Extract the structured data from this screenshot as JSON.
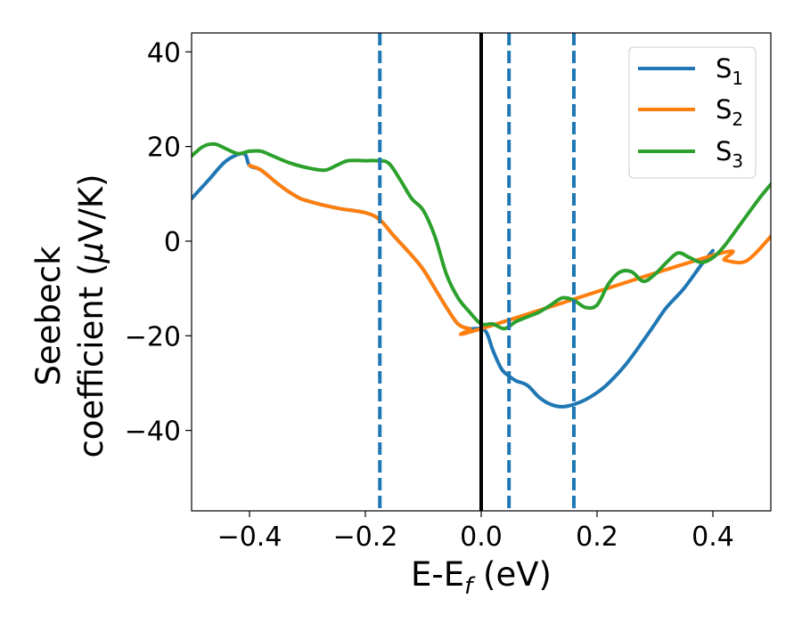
{
  "chart_data": {
    "type": "line",
    "xlabel": "E-E",
    "xlabel_sub": "f",
    "xlabel_unit": " (eV)",
    "ylabel_line1": "Seebeck",
    "ylabel_line2": "coefficient  (",
    "ylabel_mu": "μ",
    "ylabel_unit": "V/K)",
    "xlim": [
      -0.5,
      0.5
    ],
    "ylim": [
      -57,
      44
    ],
    "xticks": [
      -0.4,
      -0.2,
      0.0,
      0.2,
      0.4
    ],
    "xtick_labels": [
      "−0.4",
      "−0.2",
      "0.0",
      "0.2",
      "0.4"
    ],
    "yticks": [
      40,
      20,
      0,
      -20,
      -40
    ],
    "ytick_labels": [
      "40",
      "20",
      "0",
      "−20",
      "−40"
    ],
    "grid": false,
    "legend": {
      "position": "top-right"
    },
    "solid_vline": {
      "x": 0.0,
      "color": "#000000"
    },
    "dashed_vlines": [
      {
        "x": -0.175,
        "color": "#1f77b4"
      },
      {
        "x": 0.048,
        "color": "#1f77b4"
      },
      {
        "x": 0.16,
        "color": "#1f77b4"
      }
    ],
    "series": [
      {
        "name": "S",
        "sub": "1",
        "color": "#1f77b4",
        "x": [
          -0.5,
          -0.47,
          -0.44,
          -0.41,
          -0.4,
          -0.38,
          -0.35,
          -0.32,
          -0.3,
          -0.25,
          -0.2,
          -0.175,
          -0.15,
          -0.12,
          -0.1,
          -0.08,
          -0.06,
          -0.04,
          -0.02,
          0.0,
          0.01,
          0.02,
          0.035,
          0.048,
          0.06,
          0.08,
          0.1,
          0.12,
          0.14,
          0.16,
          0.18,
          0.2,
          0.22,
          0.25,
          0.28,
          0.3,
          0.32,
          0.35,
          0.38,
          0.4
        ],
        "y": [
          9,
          13,
          17,
          18.5,
          16,
          15,
          12,
          9.5,
          8.5,
          7,
          6,
          4.5,
          1,
          -3,
          -6,
          -10,
          -14,
          -17.5,
          -18.5,
          -18.5,
          -19.5,
          -23,
          -27,
          -28.5,
          -29.5,
          -30.5,
          -33,
          -34.5,
          -35,
          -34.5,
          -33.5,
          -32,
          -30,
          -26,
          -21,
          -17.5,
          -14,
          -10,
          -5,
          -2
        ]
      },
      {
        "name": "S",
        "sub": "2",
        "color": "#ff7f0e",
        "x": [
          -0.4,
          -0.38,
          -0.35,
          -0.32,
          -0.3,
          -0.25,
          -0.2,
          -0.175,
          -0.15,
          -0.12,
          -0.1,
          -0.08,
          -0.06,
          -0.04,
          -0.02,
          0.0,
          0.4,
          0.42,
          0.45,
          0.47,
          0.5
        ],
        "y": [
          16,
          15,
          12,
          9.5,
          8.5,
          7,
          6,
          4.5,
          1,
          -3,
          -6,
          -10,
          -14,
          -17.5,
          -18.5,
          -18.5,
          -3,
          -4,
          -4.5,
          -3,
          1
        ]
      },
      {
        "name": "S",
        "sub": "3",
        "color": "#2ca02c",
        "x": [
          -0.5,
          -0.48,
          -0.46,
          -0.44,
          -0.42,
          -0.4,
          -0.38,
          -0.36,
          -0.33,
          -0.3,
          -0.27,
          -0.25,
          -0.23,
          -0.2,
          -0.18,
          -0.16,
          -0.14,
          -0.12,
          -0.1,
          -0.08,
          -0.06,
          -0.04,
          -0.02,
          0.0,
          0.02,
          0.04,
          0.06,
          0.08,
          0.1,
          0.12,
          0.14,
          0.16,
          0.18,
          0.2,
          0.22,
          0.24,
          0.26,
          0.28,
          0.3,
          0.32,
          0.34,
          0.36,
          0.38,
          0.4,
          0.42,
          0.45,
          0.48,
          0.5
        ],
        "y": [
          18,
          20,
          20.5,
          19.5,
          18.5,
          19,
          19,
          18,
          16.5,
          15.5,
          15,
          16,
          17,
          17,
          17,
          16.5,
          13,
          9,
          6.5,
          1,
          -7,
          -12,
          -15,
          -17.5,
          -17.5,
          -18.5,
          -17,
          -16,
          -15,
          -13.5,
          -12,
          -12.5,
          -14,
          -13.5,
          -9,
          -6.5,
          -6.5,
          -8.5,
          -7,
          -4.5,
          -2.5,
          -3.5,
          -4.5,
          -3.5,
          -1,
          4,
          9,
          12
        ]
      }
    ]
  }
}
